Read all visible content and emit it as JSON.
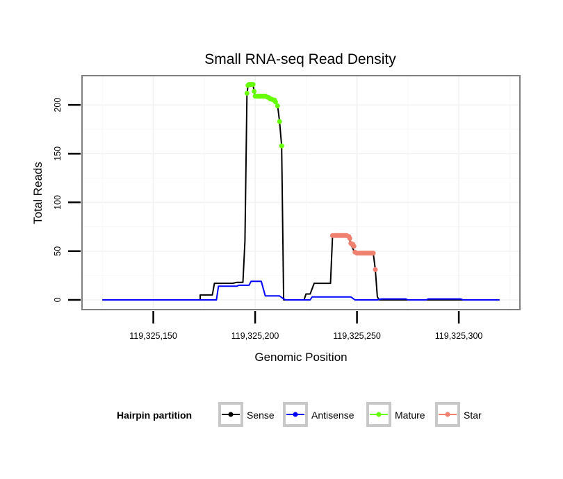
{
  "chart_data": {
    "type": "line",
    "title": "Small RNA-seq Read Density",
    "xlabel": "Genomic Position",
    "ylabel": "Total Reads",
    "xlim": [
      119325115,
      119325330
    ],
    "ylim": [
      -10,
      230
    ],
    "x_ticks": [
      119325150,
      119325200,
      119325250,
      119325300
    ],
    "x_tick_labels": [
      "119,325,150",
      "119,325,200",
      "119,325,250",
      "119,325,300"
    ],
    "y_ticks": [
      0,
      50,
      100,
      150,
      200
    ],
    "y_tick_labels": [
      "0",
      "50",
      "100",
      "150",
      "200"
    ],
    "grid": true,
    "legend_position": "bottom",
    "legend_title": "Hairpin partition",
    "series": [
      {
        "name": "Sense",
        "color": "#000000",
        "kind": "line",
        "points": [
          [
            119325125,
            0
          ],
          [
            119325173,
            0
          ],
          [
            119325173,
            5
          ],
          [
            119325179,
            5
          ],
          [
            119325180,
            17
          ],
          [
            119325189,
            17
          ],
          [
            119325191,
            18
          ],
          [
            119325194,
            18
          ],
          [
            119325195,
            60
          ],
          [
            119325196,
            210
          ],
          [
            119325196.5,
            220
          ],
          [
            119325199,
            220
          ],
          [
            119325200,
            209
          ],
          [
            119325207,
            209
          ],
          [
            119325210,
            203
          ],
          [
            119325211,
            200
          ],
          [
            119325212,
            183
          ],
          [
            119325213,
            158
          ],
          [
            119325214,
            0
          ],
          [
            119325224,
            0
          ],
          [
            119325225,
            6
          ],
          [
            119325227,
            6
          ],
          [
            119325229,
            17
          ],
          [
            119325237,
            17
          ],
          [
            119325238,
            65
          ],
          [
            119325246,
            65
          ],
          [
            119325247,
            57
          ],
          [
            119325249,
            48
          ],
          [
            119325258,
            48
          ],
          [
            119325259,
            31
          ],
          [
            119325260,
            3
          ],
          [
            119325261,
            0
          ],
          [
            119325320,
            0
          ]
        ]
      },
      {
        "name": "Antisense",
        "color": "#0000ff",
        "kind": "line",
        "points": [
          [
            119325125,
            0
          ],
          [
            119325181,
            0
          ],
          [
            119325182,
            14
          ],
          [
            119325191,
            14
          ],
          [
            119325192,
            15
          ],
          [
            119325197,
            15
          ],
          [
            119325198,
            19
          ],
          [
            119325203,
            19
          ],
          [
            119325205,
            4
          ],
          [
            119325212,
            4
          ],
          [
            119325214,
            1
          ],
          [
            119325215,
            0
          ],
          [
            119325227,
            0
          ],
          [
            119325228,
            3
          ],
          [
            119325247,
            3
          ],
          [
            119325249,
            0
          ],
          [
            119325260,
            0
          ],
          [
            119325262,
            1
          ],
          [
            119325274,
            1
          ],
          [
            119325275,
            0
          ],
          [
            119325284,
            0
          ],
          [
            119325285,
            1
          ],
          [
            119325301,
            1
          ],
          [
            119325302,
            0
          ],
          [
            119325320,
            0
          ]
        ]
      },
      {
        "name": "Mature",
        "color": "#66ff00",
        "kind": "points",
        "points": [
          [
            119325196,
            212
          ],
          [
            119325196.5,
            220
          ],
          [
            119325197,
            221
          ],
          [
            119325197.5,
            221
          ],
          [
            119325198,
            221
          ],
          [
            119325198.5,
            221
          ],
          [
            119325199,
            221
          ],
          [
            119325199.5,
            214
          ],
          [
            119325200,
            209
          ],
          [
            119325201,
            209
          ],
          [
            119325201.5,
            209
          ],
          [
            119325202,
            209
          ],
          [
            119325202.5,
            209
          ],
          [
            119325203,
            209
          ],
          [
            119325203.5,
            209
          ],
          [
            119325204,
            209
          ],
          [
            119325204.5,
            209
          ],
          [
            119325205,
            209
          ],
          [
            119325206,
            208
          ],
          [
            119325207,
            207
          ],
          [
            119325207.5,
            206
          ],
          [
            119325208,
            206
          ],
          [
            119325209,
            205
          ],
          [
            119325209.5,
            205
          ],
          [
            119325210,
            203
          ],
          [
            119325211,
            199
          ],
          [
            119325212,
            183
          ],
          [
            119325213,
            158
          ]
        ]
      },
      {
        "name": "Star",
        "color": "#f08070",
        "kind": "points",
        "points": [
          [
            119325238,
            66
          ],
          [
            119325239,
            66
          ],
          [
            119325239.5,
            66
          ],
          [
            119325240,
            66
          ],
          [
            119325240.5,
            66
          ],
          [
            119325241,
            66
          ],
          [
            119325241.5,
            66
          ],
          [
            119325242,
            66
          ],
          [
            119325242.5,
            66
          ],
          [
            119325243,
            66
          ],
          [
            119325243.5,
            66
          ],
          [
            119325244,
            66
          ],
          [
            119325244.5,
            66
          ],
          [
            119325245,
            66
          ],
          [
            119325246,
            65
          ],
          [
            119325246.5,
            63
          ],
          [
            119325247,
            58
          ],
          [
            119325247.5,
            57
          ],
          [
            119325248,
            57
          ],
          [
            119325248.5,
            55
          ],
          [
            119325249,
            49
          ],
          [
            119325250,
            48
          ],
          [
            119325251,
            48
          ],
          [
            119325251.5,
            48
          ],
          [
            119325252,
            48
          ],
          [
            119325252.5,
            48
          ],
          [
            119325253,
            48
          ],
          [
            119325253.5,
            48
          ],
          [
            119325254,
            48
          ],
          [
            119325254.5,
            48
          ],
          [
            119325255,
            48
          ],
          [
            119325255.5,
            48
          ],
          [
            119325256,
            48
          ],
          [
            119325256.5,
            48
          ],
          [
            119325257,
            48
          ],
          [
            119325257.5,
            48
          ],
          [
            119325258,
            48
          ],
          [
            119325259,
            31
          ]
        ]
      }
    ]
  },
  "legend": {
    "title": "Hairpin partition",
    "items": [
      {
        "label": "Sense",
        "color": "#000000"
      },
      {
        "label": "Antisense",
        "color": "#0000ff"
      },
      {
        "label": "Mature",
        "color": "#66ff00"
      },
      {
        "label": "Star",
        "color": "#f08070"
      }
    ]
  }
}
